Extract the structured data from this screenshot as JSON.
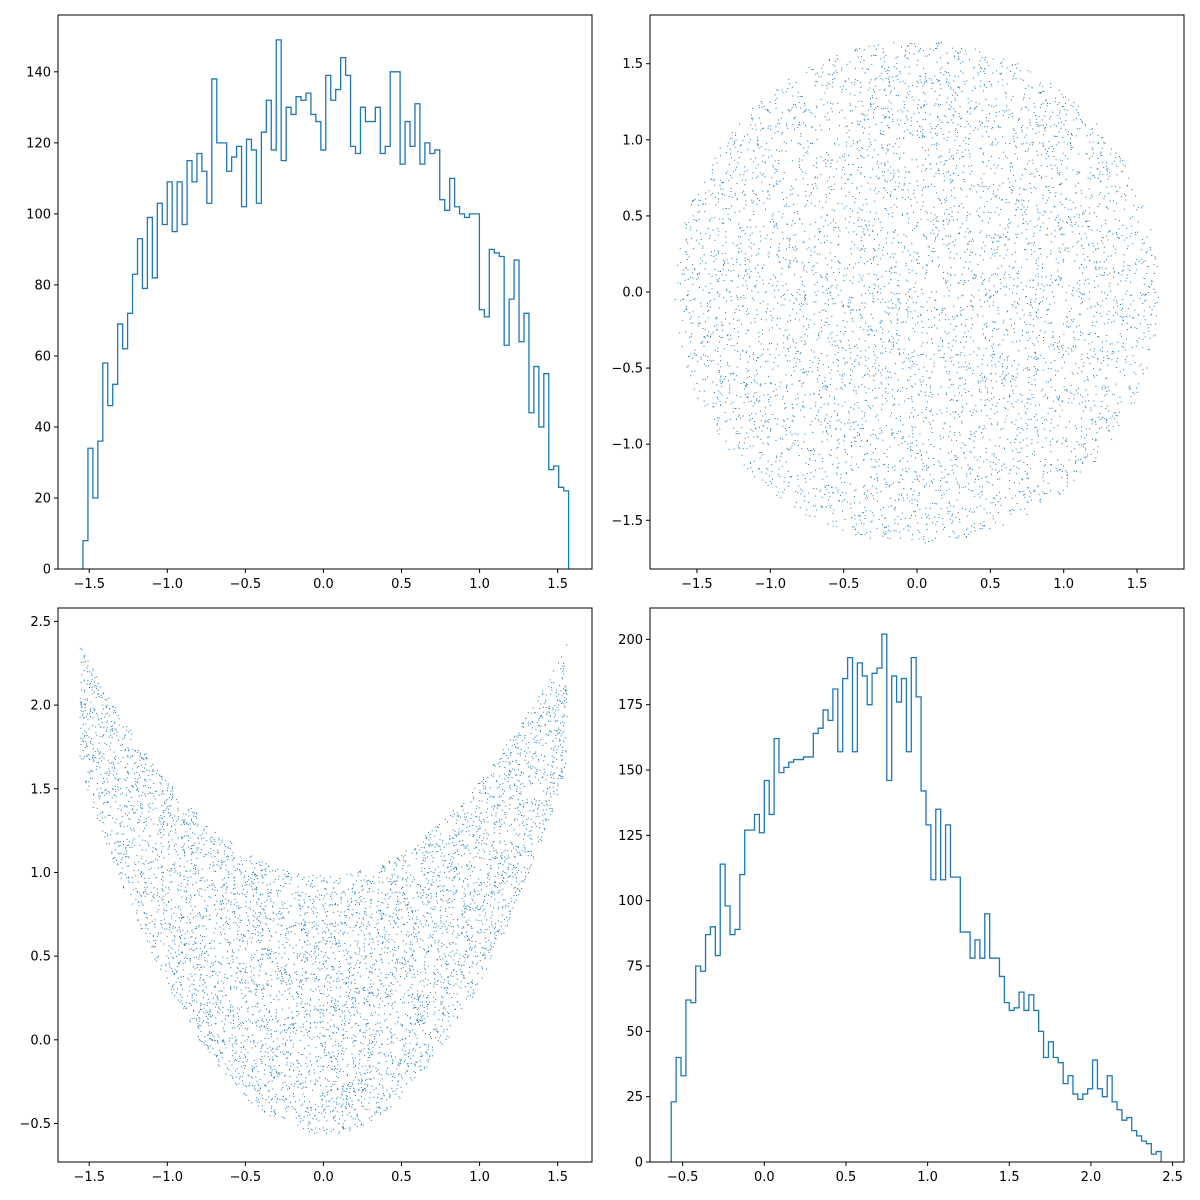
{
  "figure": {
    "colors": {
      "series": "#1f77b4",
      "axes": "#000000",
      "background": "#ffffff"
    }
  },
  "chart_data": [
    {
      "type": "histogram",
      "position": "top-left",
      "histtype": "step",
      "xlim": [
        -1.7,
        1.72
      ],
      "ylim": [
        0,
        156
      ],
      "xticks": [
        -1.5,
        -1.0,
        -0.5,
        0.0,
        0.5,
        1.0,
        1.5
      ],
      "xtick_labels": [
        "−1.5",
        "−1.0",
        "−0.5",
        "0.0",
        "0.5",
        "1.0",
        "1.5"
      ],
      "yticks": [
        0,
        20,
        40,
        60,
        80,
        100,
        120,
        140
      ],
      "ytick_labels": [
        "0",
        "20",
        "40",
        "60",
        "80",
        "100",
        "120",
        "140"
      ],
      "bin_start": -1.54,
      "bin_end": 1.57,
      "counts": [
        8,
        34,
        20,
        36,
        58,
        46,
        52,
        69,
        62,
        72,
        83,
        93,
        79,
        99,
        82,
        103,
        97,
        109,
        95,
        109,
        97,
        115,
        109,
        117,
        112,
        103,
        138,
        120,
        120,
        112,
        116,
        119,
        102,
        121,
        118,
        103,
        123,
        132,
        118,
        149,
        115,
        130,
        128,
        133,
        132,
        134,
        128,
        126,
        118,
        139,
        132,
        135,
        144,
        139,
        119,
        117,
        130,
        126,
        126,
        130,
        117,
        119,
        140,
        140,
        114,
        126,
        119,
        131,
        114,
        120,
        117,
        118,
        104,
        101,
        110,
        102,
        100,
        99,
        100,
        100,
        73,
        71,
        90,
        89,
        88,
        63,
        76,
        87,
        64,
        72,
        44,
        57,
        40,
        55,
        28,
        29,
        23,
        22
      ]
    },
    {
      "type": "scatter",
      "position": "top-right",
      "shape": "disk",
      "center": [
        0,
        0
      ],
      "radius": 1.65,
      "n_points": 6000,
      "xlim": [
        -1.82,
        1.82
      ],
      "ylim": [
        -1.82,
        1.82
      ],
      "xticks": [
        -1.5,
        -1.0,
        -0.5,
        0.0,
        0.5,
        1.0,
        1.5
      ],
      "xtick_labels": [
        "−1.5",
        "−1.0",
        "−0.5",
        "0.0",
        "0.5",
        "1.0",
        "1.5"
      ],
      "yticks": [
        -1.5,
        -1.0,
        -0.5,
        0.0,
        0.5,
        1.0,
        1.5
      ],
      "ytick_labels": [
        "−1.5",
        "−1.0",
        "−0.5",
        "0.0",
        "0.5",
        "1.0",
        "1.5"
      ]
    },
    {
      "type": "scatter",
      "position": "bottom-left",
      "shape": "parabolic-band",
      "x_range": [
        -1.56,
        1.56
      ],
      "upper": {
        "a": 0.57,
        "c": 0.98
      },
      "lower": {
        "a": 0.9,
        "c": -0.57
      },
      "n_points": 6000,
      "xlim": [
        -1.7,
        1.72
      ],
      "ylim": [
        -0.73,
        2.58
      ],
      "xticks": [
        -1.5,
        -1.0,
        -0.5,
        0.0,
        0.5,
        1.0,
        1.5
      ],
      "xtick_labels": [
        "−1.5",
        "−1.0",
        "−0.5",
        "0.0",
        "0.5",
        "1.0",
        "1.5"
      ],
      "yticks": [
        -0.5,
        0.0,
        0.5,
        1.0,
        1.5,
        2.0,
        2.5
      ],
      "ytick_labels": [
        "−0.5",
        "0.0",
        "0.5",
        "1.0",
        "1.5",
        "2.0",
        "2.5"
      ]
    },
    {
      "type": "histogram",
      "position": "bottom-right",
      "histtype": "step",
      "xlim": [
        -0.7,
        2.57
      ],
      "ylim": [
        0,
        212
      ],
      "xticks": [
        -0.5,
        0.0,
        0.5,
        1.0,
        1.5,
        2.0,
        2.5
      ],
      "xtick_labels": [
        "−0.5",
        "0.0",
        "0.5",
        "1.0",
        "1.5",
        "2.0",
        "2.5"
      ],
      "yticks": [
        0,
        25,
        50,
        75,
        100,
        125,
        150,
        175,
        200
      ],
      "ytick_labels": [
        "0",
        "25",
        "50",
        "75",
        "100",
        "125",
        "150",
        "175",
        "200"
      ],
      "bin_start": -0.57,
      "bin_end": 2.43,
      "counts": [
        23,
        40,
        33,
        62,
        61,
        75,
        73,
        87,
        90,
        79,
        114,
        98,
        87,
        89,
        110,
        127,
        127,
        133,
        126,
        146,
        133,
        162,
        149,
        151,
        153,
        154,
        154,
        155,
        155,
        164,
        166,
        173,
        169,
        181,
        157,
        185,
        193,
        157,
        191,
        186,
        175,
        187,
        189,
        202,
        146,
        186,
        176,
        185,
        157,
        193,
        178,
        142,
        129,
        108,
        135,
        108,
        129,
        109,
        109,
        88,
        88,
        78,
        85,
        78,
        95,
        78,
        78,
        71,
        61,
        58,
        59,
        65,
        58,
        64,
        58,
        50,
        40,
        46,
        40,
        38,
        30,
        33,
        26,
        24,
        26,
        28,
        39,
        28,
        25,
        33,
        23,
        20,
        16,
        17,
        12,
        10,
        8,
        7,
        3,
        4
      ]
    }
  ]
}
